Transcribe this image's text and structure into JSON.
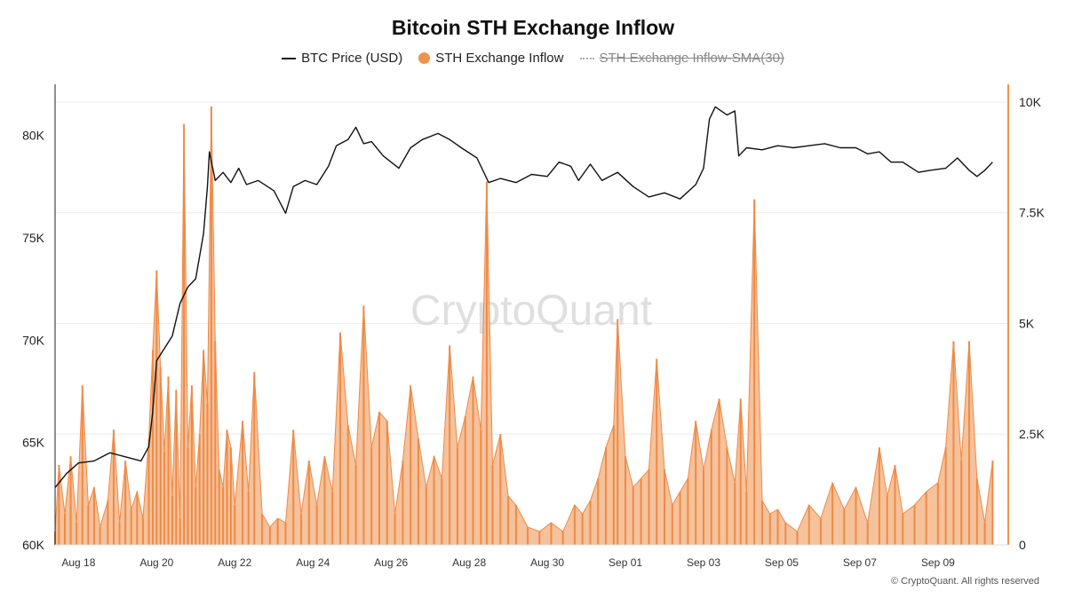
{
  "title": "Bitcoin STH Exchange Inflow",
  "legend": [
    {
      "label": "BTC Price (USD)",
      "icon": "line-swatch",
      "color": "#111111",
      "active": true
    },
    {
      "label": "STH Exchange Inflow",
      "icon": "circle-swatch",
      "color": "#f0924f",
      "active": true
    },
    {
      "label": "STH Exchange Inflow-SMA(30)",
      "icon": "dotted-line-swatch",
      "color": "#aaaaaa",
      "active": false
    }
  ],
  "watermark": "CryptoQuant",
  "copyright": "© CryptoQuant. All rights reserved",
  "colors": {
    "price": "#111111",
    "inflow_fill": "#f5b78a",
    "inflow_stroke": "#ee8a46",
    "axis_right": "#f0924f",
    "grid": "#ececec"
  },
  "chart_data": {
    "type": "line+bar",
    "title": "Bitcoin STH Exchange Inflow",
    "x_range_days": [
      -0.6,
      23.8
    ],
    "x_ticks": [
      {
        "label": "Aug 18",
        "day": 0
      },
      {
        "label": "Aug 20",
        "day": 2
      },
      {
        "label": "Aug 22",
        "day": 4
      },
      {
        "label": "Aug 24",
        "day": 6
      },
      {
        "label": "Aug 26",
        "day": 8
      },
      {
        "label": "Aug 28",
        "day": 10
      },
      {
        "label": "Aug 30",
        "day": 12
      },
      {
        "label": "Sep 01",
        "day": 14
      },
      {
        "label": "Sep 03",
        "day": 16
      },
      {
        "label": "Sep 05",
        "day": 18
      },
      {
        "label": "Sep 07",
        "day": 20
      },
      {
        "label": "Sep 09",
        "day": 22
      }
    ],
    "y_left": {
      "label": "BTC Price (USD)",
      "range": [
        60000,
        82500
      ],
      "ticks": [
        {
          "label": "60K",
          "value": 60000
        },
        {
          "label": "65K",
          "value": 65000
        },
        {
          "label": "70K",
          "value": 70000
        },
        {
          "label": "75K",
          "value": 75000
        },
        {
          "label": "80K",
          "value": 80000
        }
      ]
    },
    "y_right": {
      "label": "STH Exchange Inflow",
      "range": [
        0,
        10400
      ],
      "ticks": [
        {
          "label": "0",
          "value": 0
        },
        {
          "label": "2.5K",
          "value": 2500
        },
        {
          "label": "5K",
          "value": 5000
        },
        {
          "label": "7.5K",
          "value": 7500
        },
        {
          "label": "10K",
          "value": 10000
        }
      ]
    },
    "series": [
      {
        "name": "BTC Price (USD)",
        "axis": "left",
        "points": [
          [
            -0.6,
            62800
          ],
          [
            -0.3,
            63500
          ],
          [
            0.0,
            64000
          ],
          [
            0.4,
            64100
          ],
          [
            0.8,
            64500
          ],
          [
            1.2,
            64300
          ],
          [
            1.6,
            64100
          ],
          [
            1.8,
            64800
          ],
          [
            1.9,
            66500
          ],
          [
            2.0,
            69000
          ],
          [
            2.2,
            69600
          ],
          [
            2.4,
            70200
          ],
          [
            2.6,
            71800
          ],
          [
            2.8,
            72600
          ],
          [
            3.0,
            73000
          ],
          [
            3.2,
            75200
          ],
          [
            3.3,
            77500
          ],
          [
            3.35,
            79200
          ],
          [
            3.5,
            77800
          ],
          [
            3.7,
            78200
          ],
          [
            3.9,
            77700
          ],
          [
            4.1,
            78400
          ],
          [
            4.3,
            77600
          ],
          [
            4.6,
            77800
          ],
          [
            5.0,
            77300
          ],
          [
            5.3,
            76200
          ],
          [
            5.5,
            77500
          ],
          [
            5.8,
            77800
          ],
          [
            6.1,
            77600
          ],
          [
            6.4,
            78500
          ],
          [
            6.6,
            79500
          ],
          [
            6.9,
            79800
          ],
          [
            7.1,
            80400
          ],
          [
            7.3,
            79600
          ],
          [
            7.5,
            79700
          ],
          [
            7.8,
            79000
          ],
          [
            8.2,
            78400
          ],
          [
            8.5,
            79400
          ],
          [
            8.8,
            79800
          ],
          [
            9.2,
            80100
          ],
          [
            9.5,
            79800
          ],
          [
            9.8,
            79400
          ],
          [
            10.2,
            78900
          ],
          [
            10.5,
            77700
          ],
          [
            10.8,
            77900
          ],
          [
            11.2,
            77700
          ],
          [
            11.6,
            78100
          ],
          [
            12.0,
            78000
          ],
          [
            12.3,
            78700
          ],
          [
            12.6,
            78500
          ],
          [
            12.8,
            77800
          ],
          [
            13.1,
            78600
          ],
          [
            13.4,
            77800
          ],
          [
            13.8,
            78200
          ],
          [
            14.2,
            77500
          ],
          [
            14.6,
            77000
          ],
          [
            15.0,
            77200
          ],
          [
            15.4,
            76900
          ],
          [
            15.8,
            77600
          ],
          [
            16.0,
            78400
          ],
          [
            16.15,
            80800
          ],
          [
            16.3,
            81400
          ],
          [
            16.6,
            81000
          ],
          [
            16.8,
            81200
          ],
          [
            16.9,
            79000
          ],
          [
            17.1,
            79400
          ],
          [
            17.5,
            79300
          ],
          [
            17.9,
            79500
          ],
          [
            18.3,
            79400
          ],
          [
            18.7,
            79500
          ],
          [
            19.1,
            79600
          ],
          [
            19.5,
            79400
          ],
          [
            19.9,
            79400
          ],
          [
            20.2,
            79100
          ],
          [
            20.5,
            79200
          ],
          [
            20.8,
            78700
          ],
          [
            21.1,
            78700
          ],
          [
            21.5,
            78200
          ],
          [
            21.8,
            78300
          ],
          [
            22.2,
            78400
          ],
          [
            22.5,
            78900
          ],
          [
            22.8,
            78300
          ],
          [
            23.0,
            78000
          ],
          [
            23.2,
            78300
          ],
          [
            23.4,
            78700
          ]
        ]
      },
      {
        "name": "STH Exchange Inflow",
        "axis": "right",
        "points": [
          [
            -0.6,
            300
          ],
          [
            -0.5,
            1800
          ],
          [
            -0.35,
            700
          ],
          [
            -0.2,
            2000
          ],
          [
            -0.05,
            500
          ],
          [
            0.1,
            3600
          ],
          [
            0.25,
            900
          ],
          [
            0.4,
            1300
          ],
          [
            0.55,
            400
          ],
          [
            0.75,
            1000
          ],
          [
            0.9,
            2600
          ],
          [
            1.05,
            500
          ],
          [
            1.2,
            1900
          ],
          [
            1.35,
            800
          ],
          [
            1.5,
            1200
          ],
          [
            1.65,
            600
          ],
          [
            1.8,
            2400
          ],
          [
            1.9,
            4400
          ],
          [
            2.0,
            6200
          ],
          [
            2.1,
            4000
          ],
          [
            2.2,
            2100
          ],
          [
            2.3,
            3800
          ],
          [
            2.4,
            1100
          ],
          [
            2.5,
            3500
          ],
          [
            2.6,
            600
          ],
          [
            2.7,
            9500
          ],
          [
            2.8,
            2200
          ],
          [
            2.9,
            3600
          ],
          [
            3.0,
            1300
          ],
          [
            3.1,
            2500
          ],
          [
            3.2,
            4400
          ],
          [
            3.3,
            3200
          ],
          [
            3.4,
            9900
          ],
          [
            3.5,
            4600
          ],
          [
            3.6,
            1700
          ],
          [
            3.7,
            1300
          ],
          [
            3.8,
            2600
          ],
          [
            3.9,
            2200
          ],
          [
            4.0,
            900
          ],
          [
            4.2,
            2800
          ],
          [
            4.35,
            1200
          ],
          [
            4.5,
            3900
          ],
          [
            4.7,
            700
          ],
          [
            4.9,
            400
          ],
          [
            5.1,
            600
          ],
          [
            5.3,
            500
          ],
          [
            5.5,
            2600
          ],
          [
            5.7,
            700
          ],
          [
            5.9,
            1900
          ],
          [
            6.1,
            900
          ],
          [
            6.3,
            2000
          ],
          [
            6.5,
            1200
          ],
          [
            6.7,
            4800
          ],
          [
            6.9,
            2700
          ],
          [
            7.1,
            1800
          ],
          [
            7.3,
            5400
          ],
          [
            7.5,
            2200
          ],
          [
            7.7,
            3000
          ],
          [
            7.9,
            2800
          ],
          [
            8.1,
            700
          ],
          [
            8.3,
            1900
          ],
          [
            8.5,
            3600
          ],
          [
            8.7,
            2400
          ],
          [
            8.9,
            1300
          ],
          [
            9.1,
            2000
          ],
          [
            9.3,
            1500
          ],
          [
            9.5,
            4500
          ],
          [
            9.7,
            2200
          ],
          [
            9.9,
            2900
          ],
          [
            10.1,
            3800
          ],
          [
            10.3,
            2600
          ],
          [
            10.45,
            8200
          ],
          [
            10.6,
            1800
          ],
          [
            10.8,
            2500
          ],
          [
            11.0,
            1100
          ],
          [
            11.2,
            900
          ],
          [
            11.5,
            400
          ],
          [
            11.8,
            300
          ],
          [
            12.1,
            500
          ],
          [
            12.4,
            300
          ],
          [
            12.7,
            900
          ],
          [
            12.9,
            700
          ],
          [
            13.1,
            1000
          ],
          [
            13.3,
            1500
          ],
          [
            13.5,
            2200
          ],
          [
            13.7,
            2700
          ],
          [
            13.8,
            5100
          ],
          [
            14.0,
            2000
          ],
          [
            14.2,
            1300
          ],
          [
            14.4,
            1500
          ],
          [
            14.6,
            1700
          ],
          [
            14.8,
            4200
          ],
          [
            15.0,
            1700
          ],
          [
            15.2,
            900
          ],
          [
            15.4,
            1200
          ],
          [
            15.6,
            1500
          ],
          [
            15.8,
            2800
          ],
          [
            16.0,
            1700
          ],
          [
            16.2,
            2600
          ],
          [
            16.4,
            3300
          ],
          [
            16.6,
            2200
          ],
          [
            16.8,
            1400
          ],
          [
            16.95,
            3300
          ],
          [
            17.1,
            1200
          ],
          [
            17.3,
            7800
          ],
          [
            17.5,
            1000
          ],
          [
            17.7,
            700
          ],
          [
            17.9,
            800
          ],
          [
            18.1,
            500
          ],
          [
            18.4,
            300
          ],
          [
            18.7,
            900
          ],
          [
            19.0,
            600
          ],
          [
            19.3,
            1400
          ],
          [
            19.6,
            800
          ],
          [
            19.9,
            1300
          ],
          [
            20.2,
            500
          ],
          [
            20.5,
            2200
          ],
          [
            20.7,
            1100
          ],
          [
            20.9,
            1800
          ],
          [
            21.1,
            700
          ],
          [
            21.4,
            900
          ],
          [
            21.7,
            1200
          ],
          [
            22.0,
            1400
          ],
          [
            22.2,
            2200
          ],
          [
            22.4,
            4600
          ],
          [
            22.6,
            1900
          ],
          [
            22.8,
            4600
          ],
          [
            23.0,
            1500
          ],
          [
            23.2,
            500
          ],
          [
            23.4,
            1900
          ]
        ]
      }
    ]
  }
}
